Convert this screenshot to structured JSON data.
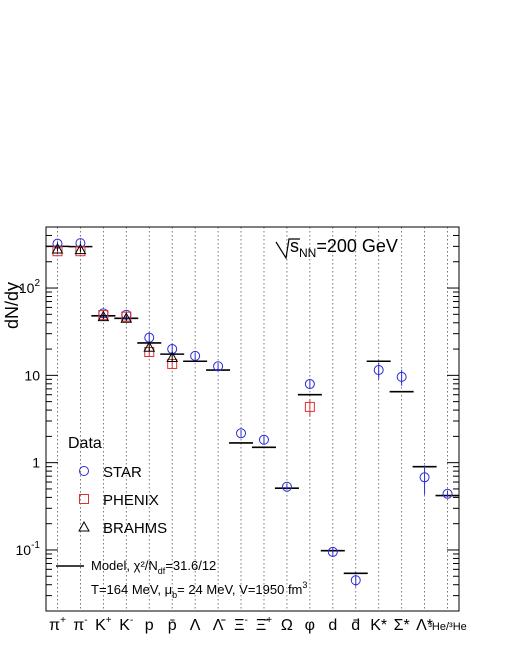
{
  "chart_data": {
    "type": "scatter",
    "ylabel": "dN/dy",
    "yscale": "log",
    "ylim": [
      0.02,
      500
    ],
    "annotation": {
      "energy_prefix": "s",
      "energy_sub": "NN",
      "energy_value": "=200 GeV"
    },
    "y_ticks": [
      {
        "value": 0.1,
        "base": "10",
        "exp": "-1"
      },
      {
        "value": 1,
        "base": "1",
        "exp": ""
      },
      {
        "value": 10,
        "base": "10",
        "exp": ""
      },
      {
        "value": 100,
        "base": "10",
        "exp": "2"
      }
    ],
    "categories": [
      {
        "base": "π",
        "sup": "+"
      },
      {
        "base": "π",
        "sup": "-"
      },
      {
        "base": "K",
        "sup": "+"
      },
      {
        "base": "K",
        "sup": "-"
      },
      {
        "base": "p",
        "sup": ""
      },
      {
        "base": "p̄",
        "sup": ""
      },
      {
        "base": "Λ",
        "sup": ""
      },
      {
        "base": "Λ̄",
        "sup": ""
      },
      {
        "base": "Ξ",
        "sup": "-"
      },
      {
        "base": "Ξ̄",
        "sup": "+"
      },
      {
        "base": "Ω",
        "sup": ""
      },
      {
        "base": "φ",
        "sup": ""
      },
      {
        "base": "d",
        "sup": ""
      },
      {
        "base": "d̄",
        "sup": ""
      },
      {
        "base": "K*",
        "sup": ""
      },
      {
        "base": "Σ*",
        "sup": ""
      },
      {
        "base": "Λ*",
        "sup": ""
      },
      {
        "base": "³He/³He",
        "sup": ""
      }
    ],
    "legend": {
      "title": "Data",
      "entries": [
        {
          "name": "STAR",
          "marker": "circle",
          "color": "#2b2bd6"
        },
        {
          "name": "PHENIX",
          "marker": "square",
          "color": "#e03030"
        },
        {
          "name": "BRAHMS",
          "marker": "triangle",
          "color": "#000000"
        }
      ],
      "model_label": "Model, χ²/N",
      "model_sub": "df",
      "model_value": "=31.6/12",
      "params_label": "T=164 MeV, μ",
      "params_sub": "b",
      "params_value": "= 24 MeV, V=1950 fm",
      "params_sup": "3"
    },
    "series": [
      {
        "name": "STAR",
        "marker": "circle",
        "color": "#2b2bd6",
        "points": [
          {
            "i": 0,
            "y": 322,
            "err": 20
          },
          {
            "i": 1,
            "y": 327,
            "err": 20
          },
          {
            "i": 2,
            "y": 51.3,
            "err": 4
          },
          {
            "i": 3,
            "y": 49.5,
            "err": 4
          },
          {
            "i": 4,
            "y": 27,
            "err": 4
          },
          {
            "i": 5,
            "y": 20,
            "err": 3
          },
          {
            "i": 6,
            "y": 16.7,
            "err": 1.5
          },
          {
            "i": 7,
            "y": 12.7,
            "err": 1.2
          },
          {
            "i": 8,
            "y": 2.17,
            "err": 0.2
          },
          {
            "i": 9,
            "y": 1.83,
            "err": 0.2
          },
          {
            "i": 10,
            "y": 0.53,
            "err": 0.04
          },
          {
            "i": 11,
            "y": 7.95,
            "err": 1.0
          },
          {
            "i": 12,
            "y": 0.095,
            "err": 0.012
          },
          {
            "i": 13,
            "y": 0.045,
            "err": 0.007
          },
          {
            "i": 14,
            "y": 11.5,
            "err": 2.5
          },
          {
            "i": 15,
            "y": 9.6,
            "err": 2.0
          },
          {
            "i": 16,
            "y": 0.68,
            "err": 0.25
          },
          {
            "i": 17,
            "y": 0.44,
            "err": 0.04
          }
        ]
      },
      {
        "name": "PHENIX",
        "marker": "square",
        "color": "#e03030",
        "points": [
          {
            "i": 0,
            "y": 264,
            "err": 20
          },
          {
            "i": 1,
            "y": 264,
            "err": 20
          },
          {
            "i": 2,
            "y": 49,
            "err": 4
          },
          {
            "i": 3,
            "y": 47,
            "err": 4
          },
          {
            "i": 4,
            "y": 18.5,
            "err": 2
          },
          {
            "i": 5,
            "y": 13.5,
            "err": 1.5
          },
          {
            "i": 11,
            "y": 4.35,
            "err": 1.0
          }
        ]
      },
      {
        "name": "BRAHMS",
        "marker": "triangle",
        "color": "#000000",
        "points": [
          {
            "i": 0,
            "y": 280,
            "err": 15
          },
          {
            "i": 1,
            "y": 275,
            "err": 15
          },
          {
            "i": 2,
            "y": 47,
            "err": 3
          },
          {
            "i": 3,
            "y": 45,
            "err": 3
          },
          {
            "i": 4,
            "y": 21,
            "err": 2
          },
          {
            "i": 5,
            "y": 16,
            "err": 1.5
          }
        ]
      },
      {
        "name": "Model",
        "marker": "hline",
        "color": "#000000",
        "points": [
          {
            "i": 0,
            "y": 300
          },
          {
            "i": 1,
            "y": 298
          },
          {
            "i": 2,
            "y": 48
          },
          {
            "i": 3,
            "y": 45
          },
          {
            "i": 4,
            "y": 23.5
          },
          {
            "i": 5,
            "y": 17.5
          },
          {
            "i": 6,
            "y": 14.5
          },
          {
            "i": 7,
            "y": 11.5
          },
          {
            "i": 8,
            "y": 1.68
          },
          {
            "i": 9,
            "y": 1.5
          },
          {
            "i": 10,
            "y": 0.51
          },
          {
            "i": 11,
            "y": 6
          },
          {
            "i": 12,
            "y": 0.098
          },
          {
            "i": 13,
            "y": 0.054
          },
          {
            "i": 14,
            "y": 14.5
          },
          {
            "i": 15,
            "y": 6.5
          },
          {
            "i": 16,
            "y": 0.9
          },
          {
            "i": 17,
            "y": 0.42
          }
        ]
      }
    ]
  }
}
